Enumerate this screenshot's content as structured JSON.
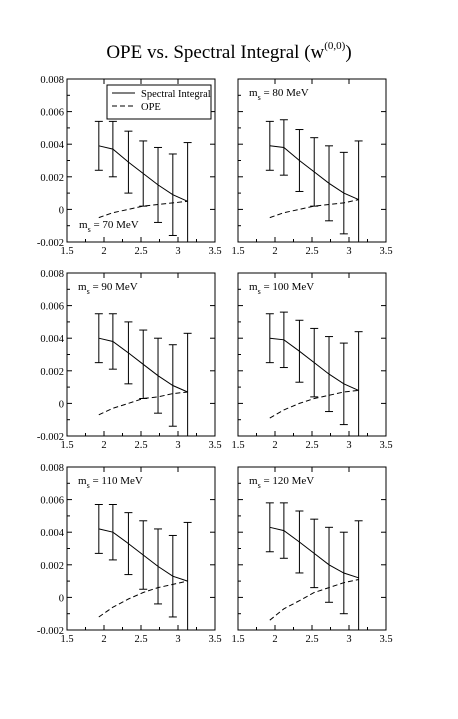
{
  "chart_data": [
    {
      "type": "line",
      "title": "OPE vs. Spectral Integral (w^(0,0))",
      "title_main": "OPE vs. Spectral Integral (w",
      "title_sup": "(0,0)",
      "title_close": ")",
      "label": "m_s = 70 MeV",
      "label_m": "m",
      "label_sub": "s",
      "label_rest": " = 70 MeV",
      "xlim": [
        1.5,
        3.5
      ],
      "ylim": [
        -0.002,
        0.008
      ],
      "xticks": [
        "1.5",
        "2",
        "2.5",
        "3",
        "3.5"
      ],
      "yticks": [
        "-0.002",
        "0",
        "0.002",
        "0.004",
        "0.006",
        "0.008"
      ],
      "legend": {
        "placement": "top-left",
        "entries": [
          "Spectral Integral",
          "OPE"
        ]
      },
      "x": [
        1.93,
        2.12,
        2.33,
        2.53,
        2.73,
        2.93,
        3.13
      ],
      "series": [
        {
          "name": "Spectral Integral",
          "style": "solid",
          "values": [
            0.0039,
            0.0037,
            0.0029,
            0.0022,
            0.0015,
            0.0009,
            0.0005
          ],
          "err": [
            0.0015,
            0.0017,
            0.0019,
            0.002,
            0.0023,
            0.0025,
            0.0036
          ]
        },
        {
          "name": "OPE",
          "style": "dashed",
          "values": [
            -0.0005,
            -0.0002,
            0.0,
            0.0002,
            0.0003,
            0.0004,
            0.0005
          ]
        }
      ]
    },
    {
      "type": "line",
      "label": "m_s = 80 MeV",
      "label_m": "m",
      "label_sub": "s",
      "label_rest": " = 80 MeV",
      "xlim": [
        1.5,
        3.5
      ],
      "ylim": [
        -0.002,
        0.008
      ],
      "xticks": [
        "1.5",
        "2",
        "2.5",
        "3",
        "3.5"
      ],
      "yticks": [],
      "x": [
        1.93,
        2.12,
        2.33,
        2.53,
        2.73,
        2.93,
        3.13
      ],
      "series": [
        {
          "name": "Spectral Integral",
          "style": "solid",
          "values": [
            0.0039,
            0.0038,
            0.003,
            0.0023,
            0.0016,
            0.001,
            0.0006
          ],
          "err": [
            0.0015,
            0.0017,
            0.0019,
            0.0021,
            0.0023,
            0.0025,
            0.0036
          ]
        },
        {
          "name": "OPE",
          "style": "dashed",
          "values": [
            -0.0005,
            -0.0002,
            0.0,
            0.0002,
            0.0003,
            0.0004,
            0.0006
          ]
        }
      ]
    },
    {
      "type": "line",
      "label": "m_s = 90 MeV",
      "label_m": "m",
      "label_sub": "s",
      "label_rest": " = 90 MeV",
      "xlim": [
        1.5,
        3.5
      ],
      "ylim": [
        -0.002,
        0.008
      ],
      "xticks": [
        "1.5",
        "2",
        "2.5",
        "3",
        "3.5"
      ],
      "yticks": [
        "-0.002",
        "0",
        "0.002",
        "0.004",
        "0.006",
        "0.008"
      ],
      "x": [
        1.93,
        2.12,
        2.33,
        2.53,
        2.73,
        2.93,
        3.13
      ],
      "series": [
        {
          "name": "Spectral Integral",
          "style": "solid",
          "values": [
            0.004,
            0.0038,
            0.0031,
            0.0024,
            0.0017,
            0.0011,
            0.0007
          ],
          "err": [
            0.0015,
            0.0017,
            0.0019,
            0.0021,
            0.0023,
            0.0025,
            0.0036
          ]
        },
        {
          "name": "OPE",
          "style": "dashed",
          "values": [
            -0.0007,
            -0.0003,
            0.0,
            0.0003,
            0.0004,
            0.0006,
            0.0007
          ]
        }
      ]
    },
    {
      "type": "line",
      "label": "m_s = 100 MeV",
      "label_m": "m",
      "label_sub": "s",
      "label_rest": " = 100 MeV",
      "xlim": [
        1.5,
        3.5
      ],
      "ylim": [
        -0.002,
        0.008
      ],
      "xticks": [
        "1.5",
        "2",
        "2.5",
        "3",
        "3.5"
      ],
      "yticks": [],
      "x": [
        1.93,
        2.12,
        2.33,
        2.53,
        2.73,
        2.93,
        3.13
      ],
      "series": [
        {
          "name": "Spectral Integral",
          "style": "solid",
          "values": [
            0.004,
            0.0039,
            0.0032,
            0.0025,
            0.0018,
            0.0012,
            0.0008
          ],
          "err": [
            0.0015,
            0.0017,
            0.0019,
            0.0021,
            0.0023,
            0.0025,
            0.0036
          ]
        },
        {
          "name": "OPE",
          "style": "dashed",
          "values": [
            -0.0009,
            -0.0004,
            0.0,
            0.0003,
            0.0005,
            0.0007,
            0.0008
          ]
        }
      ]
    },
    {
      "type": "line",
      "label": "m_s = 110 MeV",
      "label_m": "m",
      "label_sub": "s",
      "label_rest": " = 110 MeV",
      "xlim": [
        1.5,
        3.5
      ],
      "ylim": [
        -0.002,
        0.008
      ],
      "xticks": [
        "1.5",
        "2",
        "2.5",
        "3",
        "3.5"
      ],
      "yticks": [
        "-0.002",
        "0",
        "0.002",
        "0.004",
        "0.006",
        "0.008"
      ],
      "x": [
        1.93,
        2.12,
        2.33,
        2.53,
        2.73,
        2.93,
        3.13
      ],
      "series": [
        {
          "name": "Spectral Integral",
          "style": "solid",
          "values": [
            0.0042,
            0.004,
            0.0033,
            0.0026,
            0.0019,
            0.0013,
            0.001
          ],
          "err": [
            0.0015,
            0.0017,
            0.0019,
            0.0021,
            0.0023,
            0.0025,
            0.0036
          ]
        },
        {
          "name": "OPE",
          "style": "dashed",
          "values": [
            -0.0012,
            -0.0006,
            -0.0001,
            0.0003,
            0.0006,
            0.0008,
            0.001
          ]
        }
      ]
    },
    {
      "type": "line",
      "label": "m_s = 120 MeV",
      "label_m": "m",
      "label_sub": "s",
      "label_rest": " = 120 MeV",
      "xlim": [
        1.5,
        3.5
      ],
      "ylim": [
        -0.002,
        0.008
      ],
      "xticks": [
        "1.5",
        "2",
        "2.5",
        "3",
        "3.5"
      ],
      "yticks": [],
      "x": [
        1.93,
        2.12,
        2.33,
        2.53,
        2.73,
        2.93,
        3.13
      ],
      "series": [
        {
          "name": "Spectral Integral",
          "style": "solid",
          "values": [
            0.0043,
            0.0041,
            0.0034,
            0.0027,
            0.002,
            0.0015,
            0.0012
          ],
          "err": [
            0.0015,
            0.0017,
            0.0019,
            0.0021,
            0.0023,
            0.0025,
            0.0035
          ]
        },
        {
          "name": "OPE",
          "style": "dashed",
          "values": [
            -0.0014,
            -0.0007,
            -0.0002,
            0.0003,
            0.0006,
            0.0009,
            0.0011
          ]
        }
      ]
    }
  ]
}
